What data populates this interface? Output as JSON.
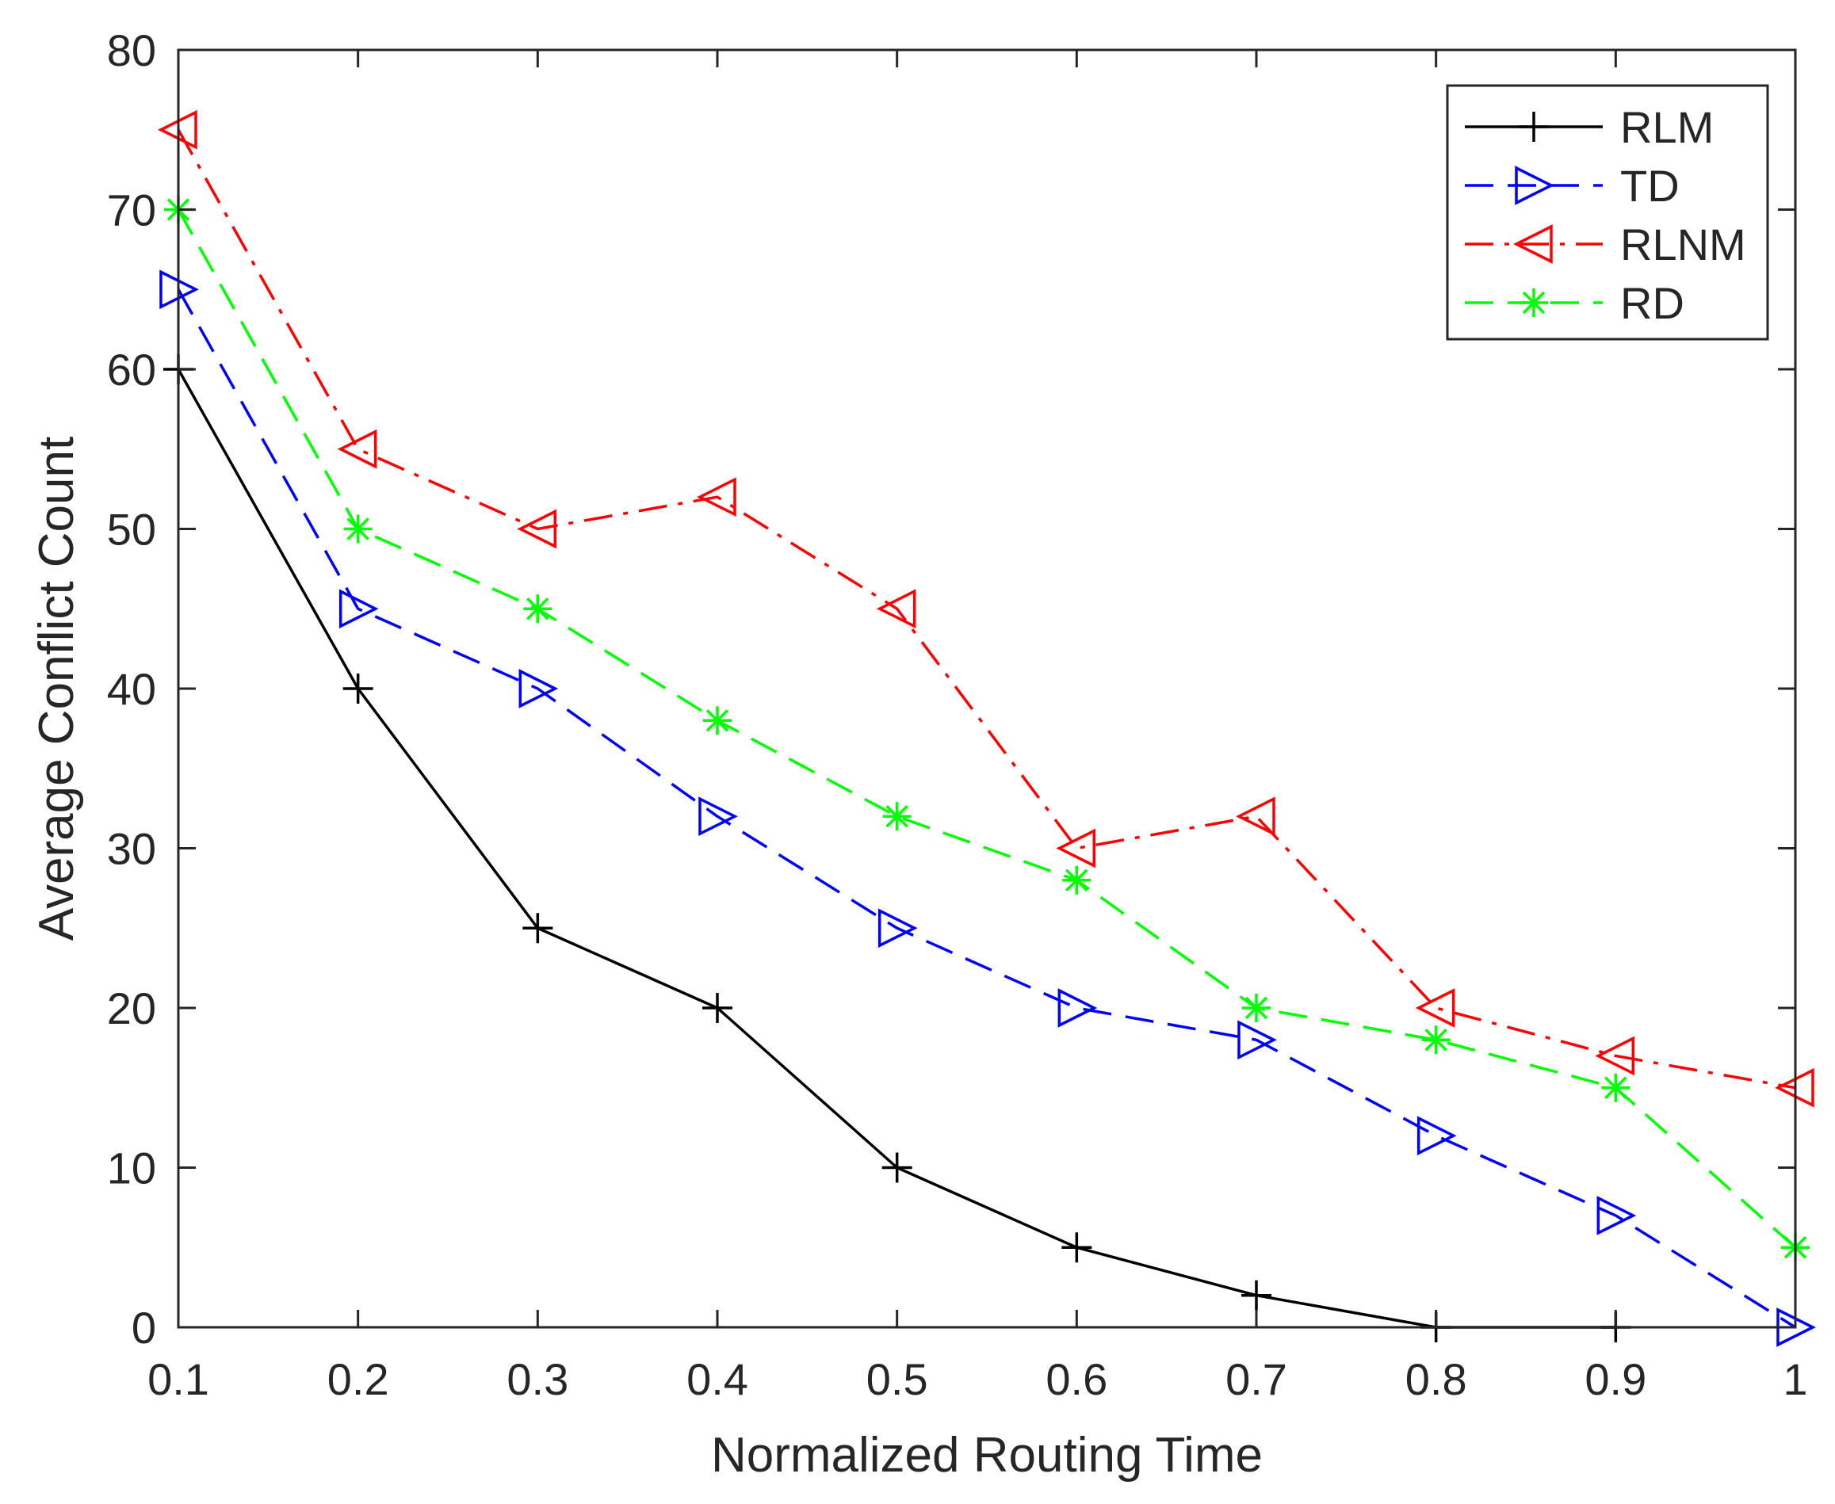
{
  "chart_data": {
    "type": "line",
    "title": "",
    "xlabel": "Normalized Routing Time",
    "ylabel": "Average Conflict Count",
    "xlim": [
      0.1,
      1
    ],
    "ylim": [
      0,
      80
    ],
    "xticks": [
      0.1,
      0.2,
      0.3,
      0.4,
      0.5,
      0.6,
      0.7,
      0.8,
      0.9,
      1
    ],
    "xtick_labels": [
      "0.1",
      "0.2",
      "0.3",
      "0.4",
      "0.5",
      "0.6",
      "0.7",
      "0.8",
      "0.9",
      "1"
    ],
    "yticks": [
      0,
      10,
      20,
      30,
      40,
      50,
      60,
      70,
      80
    ],
    "ytick_labels": [
      "0",
      "10",
      "20",
      "30",
      "40",
      "50",
      "60",
      "70",
      "80"
    ],
    "grid": false,
    "legend_position": "top-right",
    "x": [
      0.1,
      0.2,
      0.3,
      0.4,
      0.5,
      0.6,
      0.7,
      0.8,
      0.9,
      1
    ],
    "series": [
      {
        "name": "RLM",
        "color": "#000000",
        "line_style": "solid",
        "marker": "plus",
        "values": [
          60,
          40,
          25,
          20,
          10,
          5,
          2,
          0,
          0,
          null
        ]
      },
      {
        "name": "TD",
        "color": "#0000ff",
        "line_style": "dashed",
        "marker": "triangle-right",
        "values": [
          65,
          45,
          40,
          32,
          25,
          20,
          18,
          12,
          7,
          0
        ]
      },
      {
        "name": "RLNM",
        "color": "#ff0000",
        "line_style": "dash-dot",
        "marker": "triangle-left",
        "values": [
          75,
          55,
          50,
          52,
          45,
          30,
          32,
          20,
          17,
          15
        ]
      },
      {
        "name": "RD",
        "color": "#00ff00",
        "line_style": "dashed",
        "marker": "asterisk",
        "values": [
          70,
          50,
          45,
          38,
          32,
          28,
          20,
          18,
          15,
          5
        ]
      }
    ]
  }
}
